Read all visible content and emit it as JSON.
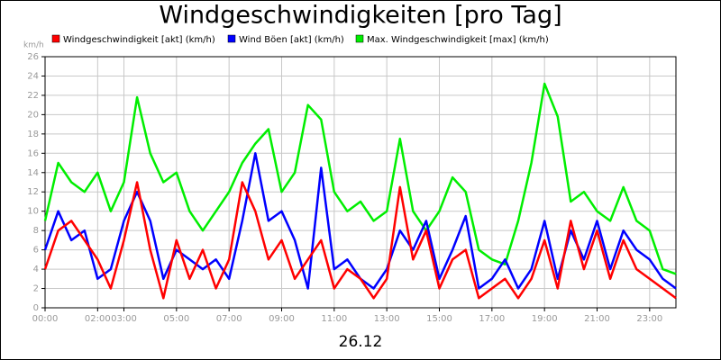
{
  "chart_data": {
    "type": "line",
    "title": "Windgeschwindigkeiten [pro Tag]",
    "y_unit": "km/h",
    "xlabel": "26.12",
    "x": [
      0,
      0.5,
      1,
      1.5,
      2,
      2.5,
      3,
      3.5,
      4,
      4.5,
      5,
      5.5,
      6,
      6.5,
      7,
      7.5,
      8,
      8.5,
      9,
      9.5,
      10,
      10.5,
      11,
      11.5,
      12,
      12.5,
      13,
      13.5,
      14,
      14.5,
      15,
      15.5,
      16,
      16.5,
      17,
      17.5,
      18,
      18.5,
      19,
      19.5,
      20,
      20.5,
      21,
      21.5,
      22,
      22.5,
      23,
      23.5,
      24
    ],
    "series": [
      {
        "name": "Windgeschwindigkeit [akt] (km/h)",
        "color": "#ff0000",
        "values": [
          4,
          8,
          9,
          7,
          5,
          2,
          7,
          13,
          6,
          1,
          7,
          3,
          6,
          2,
          5,
          13,
          10,
          5,
          7,
          3,
          5,
          7,
          2,
          4,
          3,
          1,
          3,
          12.5,
          5,
          8,
          2,
          5,
          6,
          1,
          2,
          3,
          1,
          3,
          7,
          2,
          9,
          4,
          8,
          3,
          7,
          4,
          3,
          2,
          1
        ]
      },
      {
        "name": "Wind Böen [akt] (km/h)",
        "color": "#0000ff",
        "values": [
          6,
          10,
          7,
          8,
          3,
          4,
          9,
          12,
          9,
          3,
          6,
          5,
          4,
          5,
          3,
          9,
          16,
          9,
          10,
          7,
          2,
          14.5,
          4,
          5,
          3,
          2,
          4,
          8,
          6,
          9,
          3,
          6,
          9.5,
          2,
          3,
          5,
          2,
          4,
          9,
          3,
          8,
          5,
          9,
          4,
          8,
          6,
          5,
          3,
          2
        ]
      },
      {
        "name": "Max. Windgeschwindigkeit [max] (km/h)",
        "color": "#00ee00",
        "values": [
          9,
          15,
          13,
          12,
          14,
          10,
          13,
          21.8,
          16,
          13,
          14,
          10,
          8,
          10,
          12,
          15,
          17,
          18.5,
          12,
          14,
          21,
          19.5,
          12,
          10,
          11,
          9,
          10,
          17.5,
          10,
          8,
          10,
          13.5,
          12,
          6,
          5,
          4.5,
          9,
          15,
          23.2,
          19.8,
          11,
          12,
          10,
          9,
          12.5,
          9,
          8,
          4,
          3.5
        ]
      }
    ],
    "xlim": [
      0,
      24
    ],
    "xticks": [
      {
        "value": 0,
        "label": "00:00"
      },
      {
        "value": 2,
        "label": "02:00"
      },
      {
        "value": 3,
        "label": "03:00"
      },
      {
        "value": 5,
        "label": "05:00"
      },
      {
        "value": 7,
        "label": "07:00"
      },
      {
        "value": 9,
        "label": "09:00"
      },
      {
        "value": 11,
        "label": "11:00"
      },
      {
        "value": 13,
        "label": "13:00"
      },
      {
        "value": 15,
        "label": "15:00"
      },
      {
        "value": 17,
        "label": "17:00"
      },
      {
        "value": 19,
        "label": "19:00"
      },
      {
        "value": 21,
        "label": "21:00"
      },
      {
        "value": 23,
        "label": "23:00"
      }
    ],
    "ylim": [
      0,
      26
    ],
    "yticks": [
      0,
      2,
      4,
      6,
      8,
      10,
      12,
      14,
      16,
      18,
      20,
      22,
      24,
      26
    ],
    "grid": true
  }
}
